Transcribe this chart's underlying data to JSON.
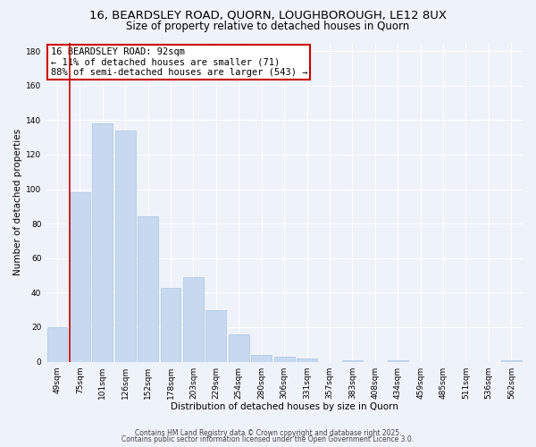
{
  "title_line1": "16, BEARDSLEY ROAD, QUORN, LOUGHBOROUGH, LE12 8UX",
  "title_line2": "Size of property relative to detached houses in Quorn",
  "xlabel": "Distribution of detached houses by size in Quorn",
  "ylabel": "Number of detached properties",
  "categories": [
    "49sqm",
    "75sqm",
    "101sqm",
    "126sqm",
    "152sqm",
    "178sqm",
    "203sqm",
    "229sqm",
    "254sqm",
    "280sqm",
    "306sqm",
    "331sqm",
    "357sqm",
    "383sqm",
    "408sqm",
    "434sqm",
    "459sqm",
    "485sqm",
    "511sqm",
    "536sqm",
    "562sqm"
  ],
  "values": [
    20,
    98,
    138,
    134,
    84,
    43,
    49,
    30,
    16,
    4,
    3,
    2,
    0,
    1,
    0,
    1,
    0,
    0,
    0,
    0,
    1
  ],
  "bar_color": "#c6d9f0",
  "bar_edgecolor": "#aac4e0",
  "ylim": [
    0,
    185
  ],
  "yticks": [
    0,
    20,
    40,
    60,
    80,
    100,
    120,
    140,
    160,
    180
  ],
  "red_line_bar_index": 1,
  "annotation_line1": "16 BEARDSLEY ROAD: 92sqm",
  "annotation_line2": "← 11% of detached houses are smaller (71)",
  "annotation_line3": "88% of semi-detached houses are larger (543) →",
  "annotation_box_color": "#ffffff",
  "annotation_box_edgecolor": "#cc0000",
  "footer_line1": "Contains HM Land Registry data © Crown copyright and database right 2025.",
  "footer_line2": "Contains public sector information licensed under the Open Government Licence 3.0.",
  "background_color": "#eef2f9",
  "grid_color": "#ffffff",
  "title_fontsize": 9.5,
  "subtitle_fontsize": 8.5,
  "axis_label_fontsize": 7.5,
  "tick_fontsize": 6.5,
  "annotation_fontsize": 7.5,
  "footer_fontsize": 5.5
}
